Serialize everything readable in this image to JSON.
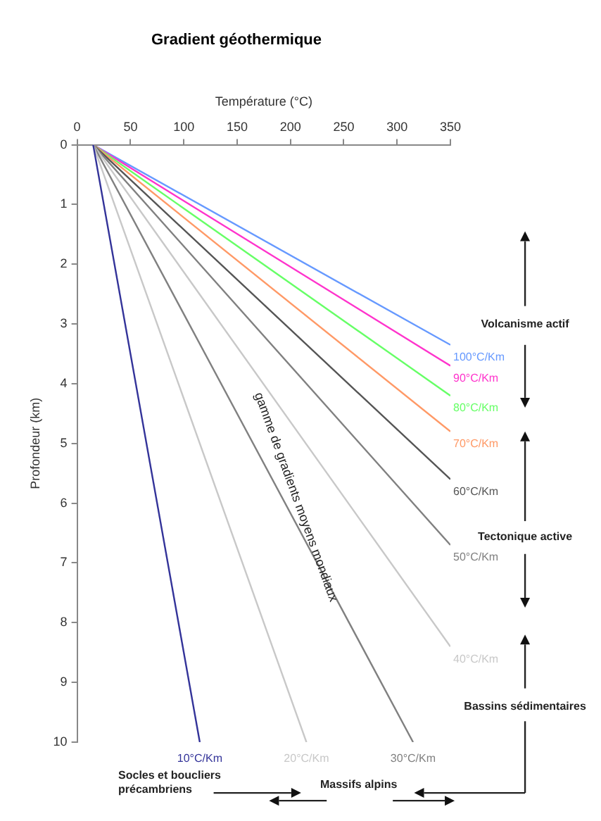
{
  "chart_data": {
    "type": "line",
    "title": "Gradient géothermique",
    "xlabel": "Température (°C)",
    "ylabel": "Profondeur (km)",
    "xlim": [
      0,
      350
    ],
    "xticks": [
      0,
      50,
      100,
      150,
      200,
      250,
      300,
      350
    ],
    "ylim": [
      10,
      0
    ],
    "yticks": [
      0,
      1,
      2,
      3,
      4,
      5,
      6,
      7,
      8,
      9,
      10
    ],
    "grid": false,
    "legend": false,
    "marker": "none",
    "line_style": "solid",
    "series": [
      {
        "name": "10°C/Km",
        "color": "#333399",
        "x": [
          15,
          115
        ],
        "values": [
          0,
          10
        ]
      },
      {
        "name": "20°C/Km",
        "color": "#c8c8c8",
        "x": [
          15,
          215
        ],
        "values": [
          0,
          10
        ]
      },
      {
        "name": "30°C/Km",
        "color": "#808080",
        "x": [
          15,
          315
        ],
        "values": [
          0,
          10
        ]
      },
      {
        "name": "40°C/Km",
        "color": "#c8c8c8",
        "x": [
          15,
          350
        ],
        "values": [
          0,
          8.4
        ]
      },
      {
        "name": "50°C/Km",
        "color": "#808080",
        "x": [
          15,
          350
        ],
        "values": [
          0,
          6.7
        ]
      },
      {
        "name": "60°C/Km",
        "color": "#555555",
        "x": [
          15,
          350
        ],
        "values": [
          0,
          5.6
        ]
      },
      {
        "name": "70°C/Km",
        "color": "#ff9966",
        "x": [
          15,
          350
        ],
        "values": [
          0,
          4.8
        ]
      },
      {
        "name": "80°C/Km",
        "color": "#66ff66",
        "x": [
          15,
          350
        ],
        "values": [
          0,
          4.2
        ]
      },
      {
        "name": "90°C/Km",
        "color": "#ff33cc",
        "x": [
          15,
          350
        ],
        "values": [
          0,
          3.7
        ]
      },
      {
        "name": "100°C/Km",
        "color": "#6699ff",
        "x": [
          15,
          350
        ],
        "values": [
          0,
          3.35
        ]
      }
    ],
    "annotations": [
      "Volcanisme actif",
      "Tectonique active",
      "Bassins sédimentaires",
      "Socles et boucliers précambriens",
      "Massifs alpins",
      "gamme de gradients moyens mondiaux"
    ]
  }
}
